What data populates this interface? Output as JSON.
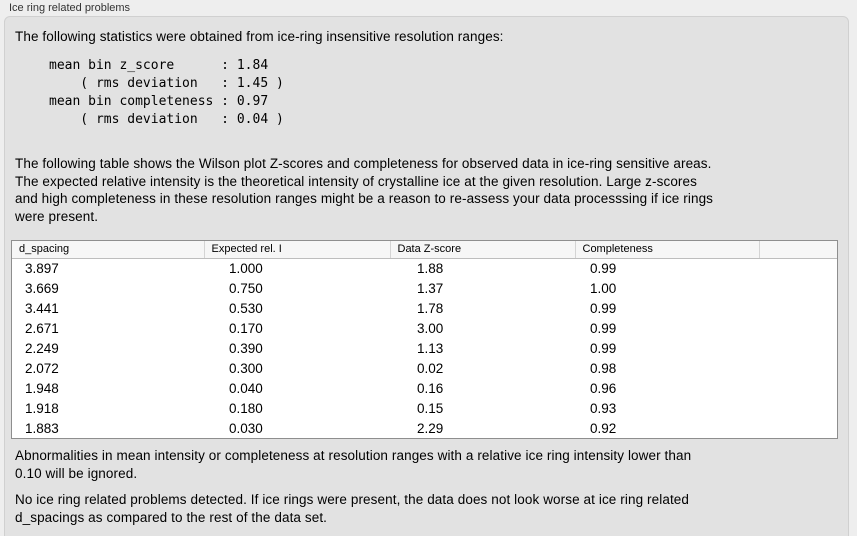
{
  "group": {
    "title": "Ice ring related problems"
  },
  "intro": "The following statistics were obtained from ice-ring insensitive resolution ranges:",
  "stats_block": "mean bin z_score      : 1.84\n    ( rms deviation   : 1.45 )\nmean bin completeness : 0.97\n    ( rms deviation   : 0.04 )",
  "stats": {
    "mean_bin_z_score": "1.84",
    "z_score_rms_deviation": "1.45",
    "mean_bin_completeness": "0.97",
    "completeness_rms_deviation": "0.04"
  },
  "description": "The following table shows the Wilson plot Z-scores and completeness for observed data in ice-ring sensitive areas.\nThe expected relative intensity is the theoretical intensity of crystalline ice at the given resolution. Large z-scores\nand high completeness in these resolution ranges might be a reason to re-assess your data processsing if ice rings\nwere present.",
  "table": {
    "columns": [
      "d_spacing",
      "Expected rel. I",
      "Data Z-score",
      "Completeness",
      ""
    ],
    "rows": [
      [
        "3.897",
        "1.000",
        "1.88",
        "0.99"
      ],
      [
        "3.669",
        "0.750",
        "1.37",
        "1.00"
      ],
      [
        "3.441",
        "0.530",
        "1.78",
        "0.99"
      ],
      [
        "2.671",
        "0.170",
        "3.00",
        "0.99"
      ],
      [
        "2.249",
        "0.390",
        "1.13",
        "0.99"
      ],
      [
        "2.072",
        "0.300",
        "0.02",
        "0.98"
      ],
      [
        "1.948",
        "0.040",
        "0.16",
        "0.96"
      ],
      [
        "1.918",
        "0.180",
        "0.15",
        "0.93"
      ],
      [
        "1.883",
        "0.030",
        "2.29",
        "0.92"
      ]
    ]
  },
  "notes": {
    "ignore": "Abnormalities in mean intensity or completeness at resolution ranges with a relative ice ring intensity lower than\n0.10 will be ignored.",
    "conclusion": "No ice ring related problems detected. If ice rings were present, the data does not look worse at ice ring related\nd_spacings as compared to the rest of the data set."
  },
  "colors": {
    "window_bg": "#eeeeee",
    "panel_bg": "#e2e2e2",
    "panel_border": "#d0d0d0",
    "table_bg": "#ffffff",
    "table_border": "#8e8e8e",
    "table_header_bg": "#f6f6f6",
    "text": "#000000"
  }
}
